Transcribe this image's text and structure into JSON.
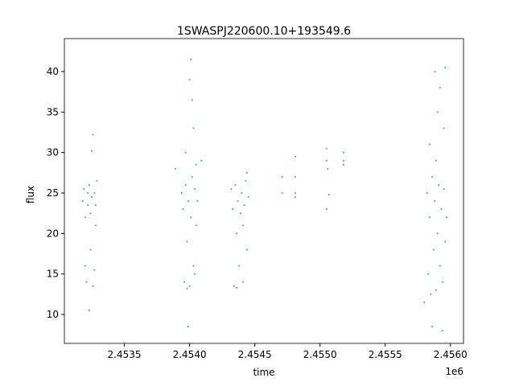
{
  "chart_data": {
    "type": "scatter",
    "title": "1SWASPJ220600.10+193549.6",
    "x_label": "time",
    "y_label": "flux",
    "x_offset_label": "1e6",
    "color": "#1f77b4",
    "x": [
      2.45318,
      2.45319,
      2.4532,
      2.45321,
      2.45322,
      2.45323,
      2.45324,
      2.45325,
      2.45326,
      2.45327,
      2.45328,
      2.45329,
      2.4532,
      2.45324,
      2.45327,
      2.45325,
      2.45323,
      2.45326,
      2.45322,
      2.45328,
      2.45394,
      2.45395,
      2.45396,
      2.45397,
      2.45398,
      2.45399,
      2.454,
      2.45401,
      2.45402,
      2.45403,
      2.45404,
      2.45405,
      2.45406,
      2.45399,
      2.45401,
      2.45402,
      2.454,
      2.45397,
      2.45403,
      2.45405,
      2.45389,
      2.45409,
      2.45398,
      2.45404,
      2.45432,
      2.45433,
      2.45434,
      2.45435,
      2.45436,
      2.45437,
      2.45438,
      2.45439,
      2.4544,
      2.45441,
      2.45442,
      2.45443,
      2.45444,
      2.45445,
      2.45444,
      2.45436,
      2.45441,
      2.45471,
      2.45471,
      2.45481,
      2.45481,
      2.45481,
      2.45481,
      2.45505,
      2.45505,
      2.45506,
      2.45507,
      2.45505,
      2.45518,
      2.45518,
      2.45518,
      2.45582,
      2.45583,
      2.45584,
      2.45585,
      2.45586,
      2.45587,
      2.45588,
      2.45589,
      2.4559,
      2.45591,
      2.45592,
      2.45593,
      2.45594,
      2.45595,
      2.45596,
      2.45597,
      2.45588,
      2.45592,
      2.4559,
      2.45586,
      2.45594,
      2.45596,
      2.45584,
      2.45595,
      2.4558,
      2.45589
    ],
    "values": [
      24,
      25.5,
      22,
      14,
      23.5,
      26,
      18,
      24.5,
      13.5,
      25,
      21,
      26.5,
      16,
      22.5,
      15.5,
      30.2,
      10.5,
      32.2,
      25,
      23.5,
      25,
      23,
      14,
      26,
      19,
      24,
      13.5,
      22,
      27,
      16,
      25.5,
      21,
      24,
      8.5,
      41.5,
      36.5,
      39,
      30,
      33,
      28.5,
      28,
      29,
      13.2,
      15,
      25.5,
      23,
      13.5,
      26,
      20,
      24,
      16,
      22.5,
      25,
      14,
      23.5,
      26.5,
      18,
      24.5,
      27.5,
      13.3,
      21,
      27,
      25,
      29.5,
      27,
      25,
      24.5,
      30.5,
      29,
      28,
      24.8,
      23,
      30,
      29,
      28.5,
      25,
      15,
      22,
      12.5,
      27,
      18,
      24,
      13,
      20,
      26,
      16,
      23,
      14,
      25.5,
      19,
      22,
      40,
      38,
      35,
      8.5,
      8,
      40.5,
      31,
      33,
      11.5,
      29
    ],
    "xlim": [
      2.45304,
      2.4561
    ],
    "ylim": [
      6.43,
      44.07
    ],
    "xticks": [
      2.4535,
      {
        "value": 2.454,
        "label": "2.4540"
      },
      2.4545,
      {
        "value": 2.455,
        "label": "2.4550"
      },
      2.4555,
      {
        "value": 2.456,
        "label": "2.4560"
      }
    ],
    "yticks": [
      10,
      15,
      20,
      25,
      30,
      35,
      40
    ]
  }
}
